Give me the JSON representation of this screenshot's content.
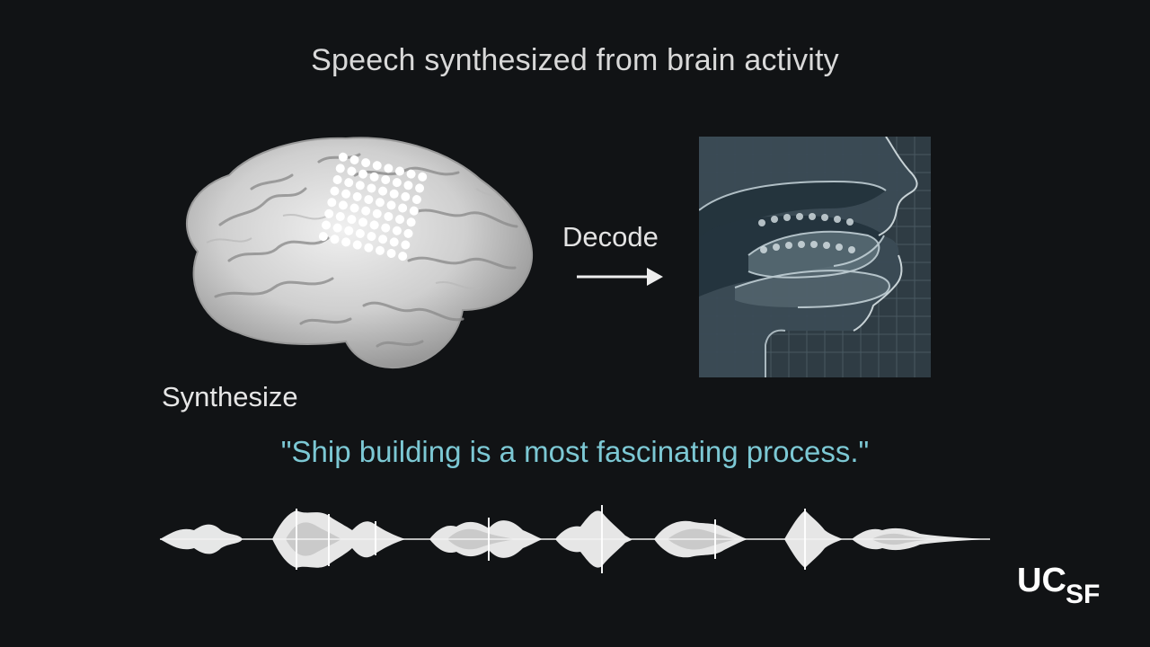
{
  "slide": {
    "title": "Speech synthesized from brain activity",
    "decode_label": "Decode",
    "synthesize_label": "Synthesize",
    "quote": "\"Ship building is a most fascinating process.\""
  },
  "logo": {
    "primary": "UC",
    "secondary": "SF"
  },
  "colors": {
    "background": "#111315",
    "text": "#d9d9d9",
    "quote": "#7cc8d4",
    "vocal_panel": "#2f3c44"
  },
  "icons": {
    "brain": "brain-illustration",
    "arrow": "arrow-right-icon",
    "vocal_tract": "vocal-tract-illustration",
    "waveform": "audio-waveform"
  }
}
